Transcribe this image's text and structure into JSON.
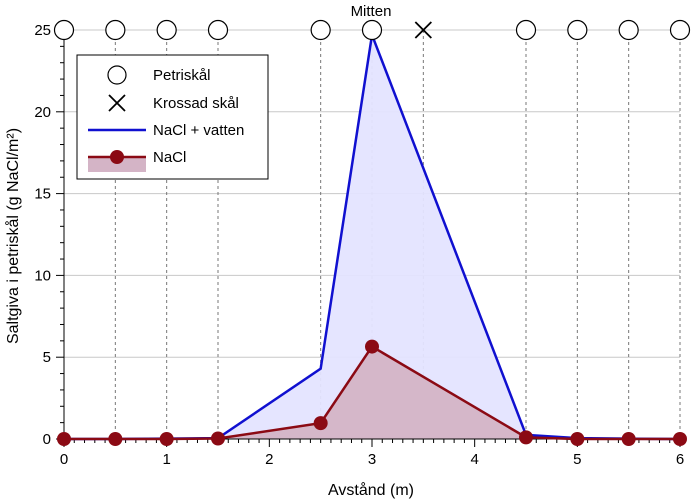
{
  "chart_data": {
    "type": "area",
    "title": "",
    "xlabel": "Avstånd (m)",
    "ylabel": "Saltgiva i petriskål (g NaCl/m²)",
    "xlim": [
      0,
      6
    ],
    "ylim": [
      0,
      25
    ],
    "xticks": [
      0,
      1,
      2,
      3,
      4,
      5,
      6
    ],
    "yticks": [
      0,
      5,
      10,
      15,
      20,
      25
    ],
    "x_minor_step": 0.1,
    "y_minor_step": 1,
    "grid": true,
    "legend_position": "top-left",
    "annotations": [
      {
        "text": "Mitten",
        "x": 3
      }
    ],
    "series": [
      {
        "name": "NaCl + vatten",
        "style": "line-area",
        "color": "#1010d0",
        "fill": "#e4e4ff",
        "x": [
          0,
          0.5,
          1,
          1.5,
          2.5,
          3,
          4.5,
          5,
          5.5,
          6
        ],
        "y": [
          0,
          0,
          0.02,
          0.05,
          4.3,
          24.7,
          0.25,
          0.05,
          0.02,
          0
        ]
      },
      {
        "name": "NaCl",
        "style": "line-area-marker",
        "color": "#8b0a14",
        "fill": "#d4b4c6",
        "x": [
          0,
          0.5,
          1,
          1.5,
          2.5,
          3,
          4.5,
          5,
          5.5,
          6
        ],
        "y": [
          0,
          0,
          0,
          0.03,
          0.97,
          5.65,
          0.1,
          0,
          0,
          0
        ]
      }
    ],
    "petri_dishes": {
      "name": "Petriskål",
      "x": [
        0,
        0.5,
        1,
        1.5,
        2.5,
        3,
        4.5,
        5,
        5.5,
        6
      ],
      "y": 25
    },
    "crushed_dish": {
      "name": "Krossad skål",
      "x": [
        3.5
      ],
      "y": 25
    }
  }
}
